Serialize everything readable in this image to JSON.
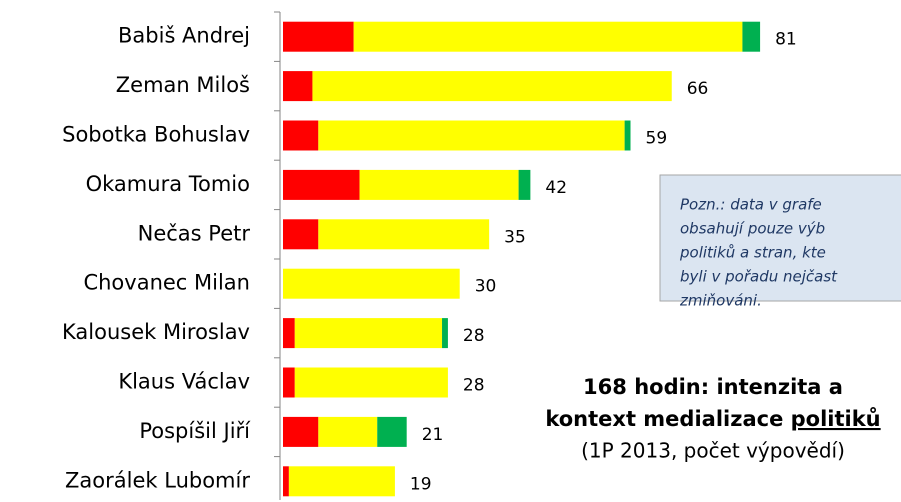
{
  "chart_data": {
    "type": "stacked-bar-horizontal",
    "categories": [
      "Babiš Andrej",
      "Zeman Miloš",
      "Sobotka Bohuslav",
      "Okamura Tomio",
      "Nečas Petr",
      "Chovanec Milan",
      "Kalousek Miroslav",
      "Klaus Václav",
      "Pospíšil Jiří",
      "Zaorálek Lubomír"
    ],
    "series": [
      {
        "color": "#ff0000",
        "values": [
          12,
          5,
          6,
          13,
          6,
          0,
          2,
          2,
          6,
          1
        ]
      },
      {
        "color": "#ffff00",
        "values": [
          66,
          61,
          52,
          27,
          29,
          30,
          25,
          26,
          10,
          18
        ]
      },
      {
        "color": "#00b050",
        "values": [
          3,
          0,
          1,
          2,
          0,
          0,
          1,
          0,
          5,
          0
        ]
      }
    ],
    "totals": [
      81,
      66,
      59,
      42,
      35,
      30,
      28,
      28,
      21,
      19
    ],
    "title": {
      "line1": "168 hodin: intenzita a",
      "line2": "kontext medializace ",
      "line2_underlined": "politiků",
      "subtitle": "(1P 2013, počet výpovědí)"
    },
    "note": [
      "Pozn.: data v grafe",
      "obsahují pouze výb",
      "politiků a stran, kte",
      "byli v pořadu nejčast",
      "zmiňováni."
    ]
  }
}
